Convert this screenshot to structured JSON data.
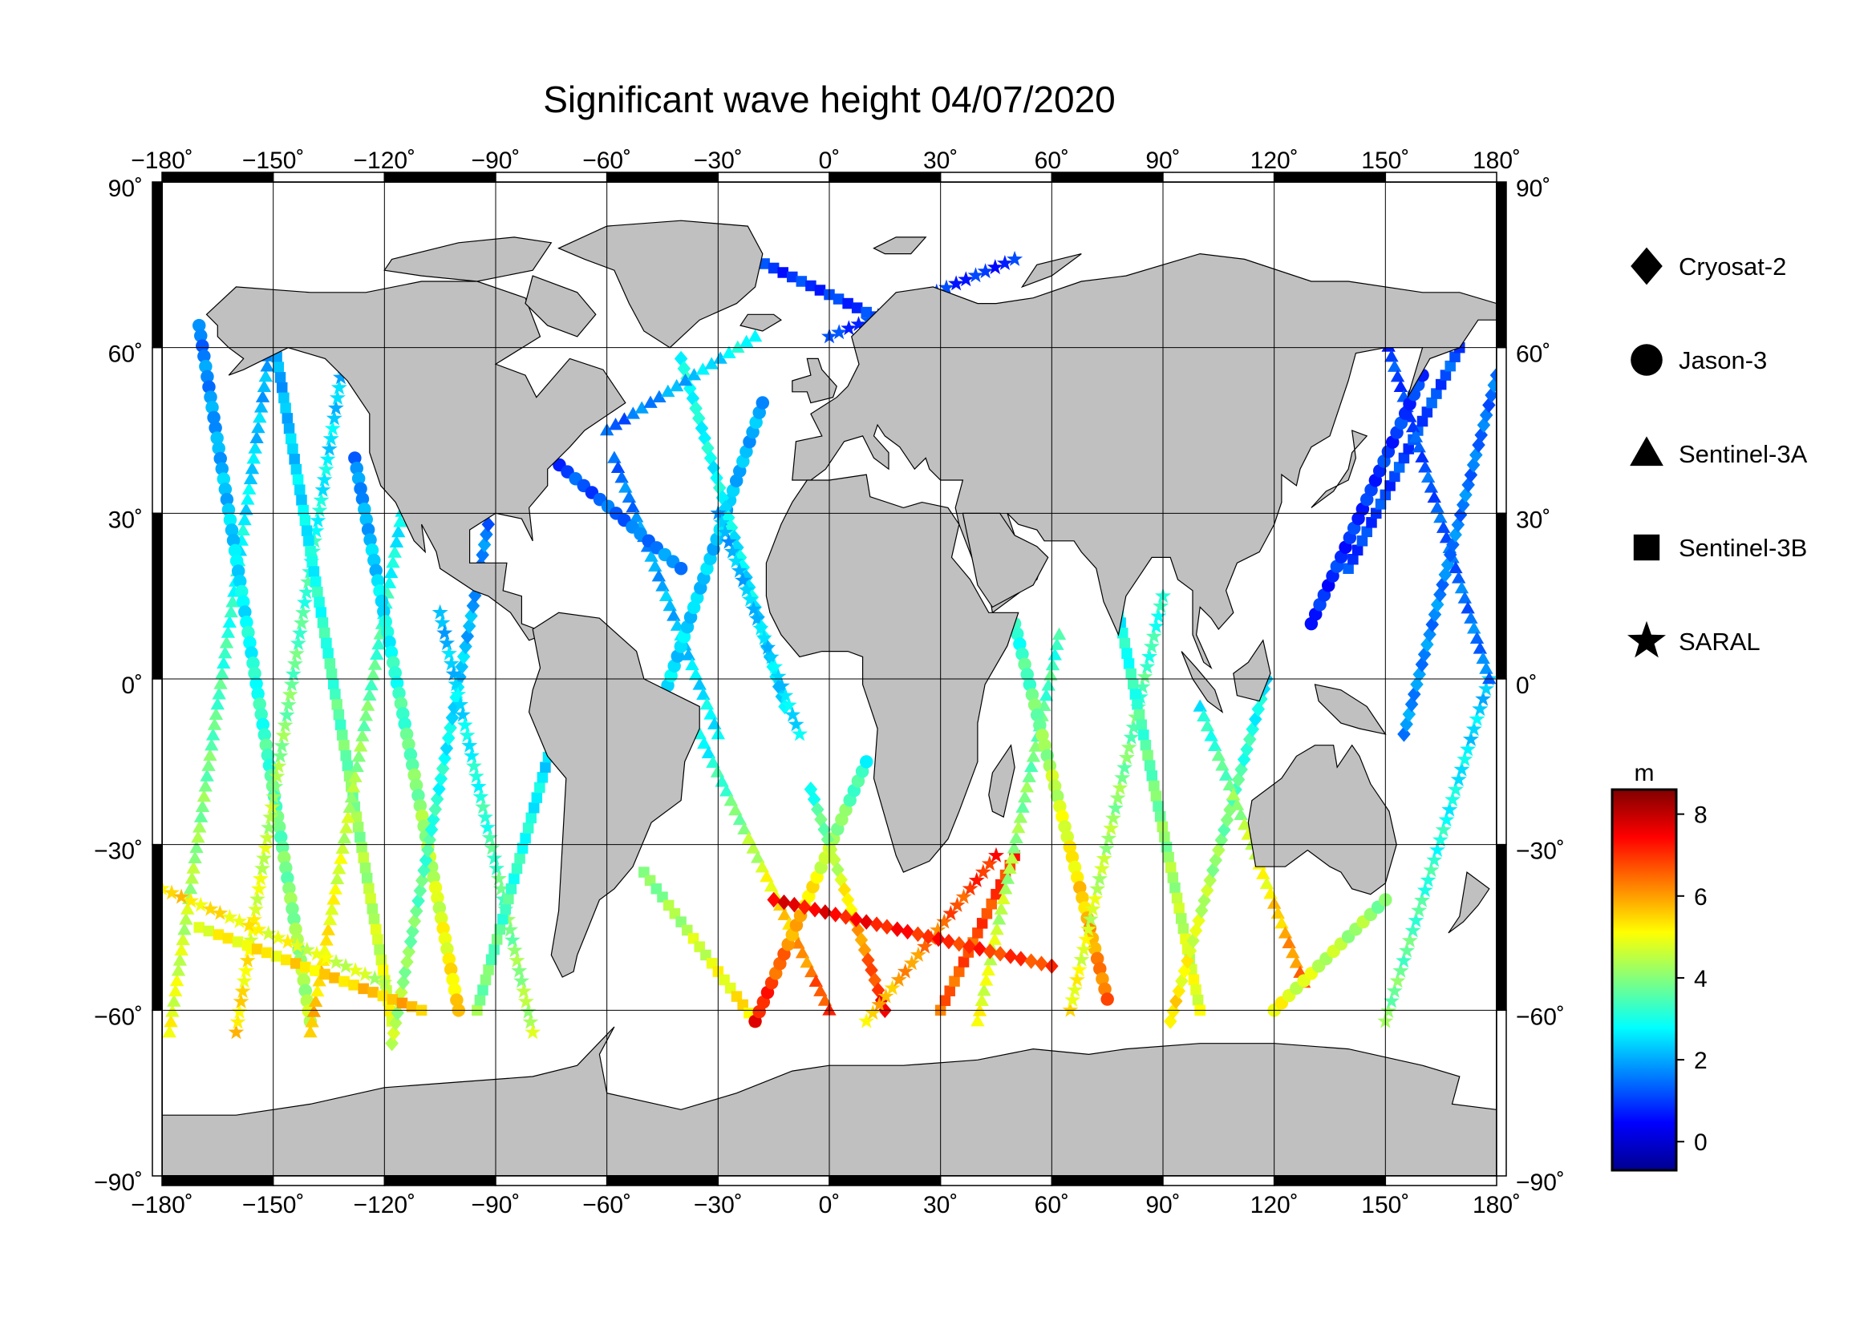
{
  "title": "Significant wave height 04/07/2020",
  "axes": {
    "lon_ticks": [
      "−180˚",
      "−150˚",
      "−120˚",
      "−90˚",
      "−60˚",
      "−30˚",
      "0˚",
      "30˚",
      "60˚",
      "90˚",
      "120˚",
      "150˚",
      "180˚"
    ],
    "lat_ticks": [
      "90˚",
      "60˚",
      "30˚",
      "0˚",
      "−30˚",
      "−60˚",
      "−90˚"
    ],
    "lon_range": [
      -180,
      180
    ],
    "lat_range": [
      -90,
      90
    ],
    "lon_values": [
      -180,
      -150,
      -120,
      -90,
      -60,
      -30,
      0,
      30,
      60,
      90,
      120,
      150,
      180
    ],
    "lat_values": [
      90,
      60,
      30,
      0,
      -30,
      -60,
      -90
    ],
    "grid": true
  },
  "legend": {
    "position": "right",
    "items": [
      {
        "label": "Cryosat-2",
        "symbol": "diamond"
      },
      {
        "label": "Jason-3",
        "symbol": "circle"
      },
      {
        "label": "Sentinel-3A",
        "symbol": "triangle"
      },
      {
        "label": "Sentinel-3B",
        "symbol": "square"
      },
      {
        "label": "SARAL",
        "symbol": "star"
      }
    ]
  },
  "colorbar": {
    "unit": "m",
    "ticks": [
      "8",
      "6",
      "4",
      "2",
      "0"
    ],
    "tick_values": [
      8,
      6,
      4,
      2,
      0
    ],
    "range": [
      -0.7,
      8.6
    ],
    "colors": [
      "#00008f",
      "#0000ff",
      "#0080ff",
      "#00ffff",
      "#80ff80",
      "#ffff00",
      "#ff8000",
      "#ff0000",
      "#800000"
    ]
  },
  "colors": {
    "land": "#c0c0c0",
    "ocean": "#ffffff",
    "frame": "#000000"
  },
  "chart_data": {
    "type": "scatter",
    "title": "Significant wave height 04/07/2020",
    "xlabel": "",
    "ylabel": "",
    "xlim": [
      -180,
      180
    ],
    "ylim": [
      -90,
      90
    ],
    "value_unit": "m",
    "description_series": [
      {
        "name": "Cryosat-2",
        "symbol": "diamond"
      },
      {
        "name": "Jason-3",
        "symbol": "circle"
      },
      {
        "name": "Sentinel-3A",
        "symbol": "triangle"
      },
      {
        "name": "Sentinel-3B",
        "symbol": "square"
      },
      {
        "name": "SARAL",
        "symbol": "star"
      }
    ],
    "tracks": [
      {
        "sat": "Sentinel-3A",
        "lon": [
          -178,
          -150
        ],
        "lat": [
          -64,
          64
        ],
        "swh": [
          5.0,
          1.8
        ]
      },
      {
        "sat": "Jason-3",
        "lon": [
          -170,
          -140
        ],
        "lat": [
          64,
          -62
        ],
        "swh": [
          1.5,
          4.5
        ]
      },
      {
        "sat": "SARAL",
        "lon": [
          -160,
          -130
        ],
        "lat": [
          -64,
          62
        ],
        "swh": [
          5.5,
          2.0
        ]
      },
      {
        "sat": "Sentinel-3B",
        "lon": [
          -150,
          -118
        ],
        "lat": [
          62,
          -62
        ],
        "swh": [
          1.8,
          5.0
        ]
      },
      {
        "sat": "Sentinel-3A",
        "lon": [
          -140,
          -108
        ],
        "lat": [
          -64,
          58
        ],
        "swh": [
          5.8,
          1.6
        ]
      },
      {
        "sat": "Jason-3",
        "lon": [
          -128,
          -100
        ],
        "lat": [
          40,
          -60
        ],
        "swh": [
          1.6,
          5.5
        ]
      },
      {
        "sat": "Cryosat-2",
        "lon": [
          -118,
          -92
        ],
        "lat": [
          -66,
          28
        ],
        "swh": [
          4.5,
          1.5
        ]
      },
      {
        "sat": "SARAL",
        "lon": [
          -105,
          -80
        ],
        "lat": [
          12,
          -64
        ],
        "swh": [
          2.0,
          4.5
        ]
      },
      {
        "sat": "Sentinel-3B",
        "lon": [
          -95,
          -72
        ],
        "lat": [
          -60,
          -5
        ],
        "swh": [
          4.0,
          2.2
        ]
      },
      {
        "sat": "Sentinel-3A",
        "lon": [
          -58,
          -30
        ],
        "lat": [
          40,
          -10
        ],
        "swh": [
          1.4,
          2.8
        ]
      },
      {
        "sat": "Jason-3",
        "lon": [
          -48,
          -18
        ],
        "lat": [
          -10,
          50
        ],
        "swh": [
          2.6,
          2.0
        ]
      },
      {
        "sat": "Cryosat-2",
        "lon": [
          -40,
          -12
        ],
        "lat": [
          58,
          -5
        ],
        "swh": [
          3.0,
          2.4
        ]
      },
      {
        "sat": "SARAL",
        "lon": [
          -30,
          -8
        ],
        "lat": [
          30,
          -10
        ],
        "swh": [
          2.0,
          2.6
        ]
      },
      {
        "sat": "Sentinel-3B",
        "lon": [
          -50,
          -20
        ],
        "lat": [
          -35,
          -62
        ],
        "swh": [
          3.8,
          5.5
        ]
      },
      {
        "sat": "Sentinel-3A",
        "lon": [
          -35,
          0
        ],
        "lat": [
          -10,
          -60
        ],
        "swh": [
          2.6,
          7.0
        ]
      },
      {
        "sat": "Jason-3",
        "lon": [
          -20,
          10
        ],
        "lat": [
          -62,
          -15
        ],
        "swh": [
          7.5,
          3.0
        ]
      },
      {
        "sat": "Cryosat-2",
        "lon": [
          -5,
          15
        ],
        "lat": [
          -20,
          -60
        ],
        "swh": [
          3.0,
          7.5
        ]
      },
      {
        "sat": "SARAL",
        "lon": [
          10,
          45
        ],
        "lat": [
          -62,
          -32
        ],
        "swh": [
          5.5,
          7.2
        ]
      },
      {
        "sat": "Sentinel-3B",
        "lon": [
          30,
          50
        ],
        "lat": [
          -60,
          -32
        ],
        "swh": [
          6.5,
          7.0
        ]
      },
      {
        "sat": "Sentinel-3A",
        "lon": [
          40,
          62
        ],
        "lat": [
          -62,
          8
        ],
        "swh": [
          5.0,
          3.2
        ]
      },
      {
        "sat": "Jason-3",
        "lon": [
          50,
          75
        ],
        "lat": [
          10,
          -58
        ],
        "swh": [
          3.0,
          6.5
        ]
      },
      {
        "sat": "SARAL",
        "lon": [
          65,
          90
        ],
        "lat": [
          -60,
          15
        ],
        "swh": [
          5.2,
          3.0
        ]
      },
      {
        "sat": "Sentinel-3B",
        "lon": [
          78,
          100
        ],
        "lat": [
          12,
          -60
        ],
        "swh": [
          2.8,
          5.0
        ]
      },
      {
        "sat": "Cryosat-2",
        "lon": [
          92,
          118
        ],
        "lat": [
          -62,
          0
        ],
        "swh": [
          5.5,
          2.6
        ]
      },
      {
        "sat": "Sentinel-3A",
        "lon": [
          100,
          128
        ],
        "lat": [
          -5,
          -55
        ],
        "swh": [
          2.8,
          6.5
        ]
      },
      {
        "sat": "Jason-3",
        "lon": [
          120,
          150
        ],
        "lat": [
          -60,
          -40
        ],
        "swh": [
          5.0,
          4.0
        ]
      },
      {
        "sat": "SARAL",
        "lon": [
          150,
          178
        ],
        "lat": [
          -62,
          0
        ],
        "swh": [
          4.0,
          2.2
        ]
      },
      {
        "sat": "Sentinel-3B",
        "lon": [
          140,
          170
        ],
        "lat": [
          20,
          60
        ],
        "swh": [
          1.0,
          1.2
        ]
      },
      {
        "sat": "Sentinel-3A",
        "lon": [
          150,
          178
        ],
        "lat": [
          62,
          0
        ],
        "swh": [
          1.0,
          1.6
        ]
      },
      {
        "sat": "Jason-3",
        "lon": [
          130,
          160
        ],
        "lat": [
          10,
          55
        ],
        "swh": [
          0.8,
          1.0
        ]
      },
      {
        "sat": "Cryosat-2",
        "lon": [
          155,
          180
        ],
        "lat": [
          -10,
          55
        ],
        "swh": [
          1.8,
          1.4
        ]
      },
      {
        "sat": "Sentinel-3B",
        "lon": [
          -20,
          30
        ],
        "lat": [
          76,
          60
        ],
        "swh": [
          0.9,
          1.0
        ]
      },
      {
        "sat": "SARAL",
        "lon": [
          0,
          50
        ],
        "lat": [
          62,
          76
        ],
        "swh": [
          1.0,
          0.8
        ]
      },
      {
        "sat": "Sentinel-3A",
        "lon": [
          -60,
          -20
        ],
        "lat": [
          45,
          62
        ],
        "swh": [
          1.2,
          3.0
        ]
      },
      {
        "sat": "Jason-3",
        "lon": [
          -75,
          -40
        ],
        "lat": [
          40,
          20
        ],
        "swh": [
          1.0,
          1.8
        ]
      },
      {
        "sat": "Sentinel-3B",
        "lon": [
          -170,
          -110
        ],
        "lat": [
          -45,
          -60
        ],
        "swh": [
          5.0,
          5.8
        ]
      },
      {
        "sat": "SARAL",
        "lon": [
          -180,
          -120
        ],
        "lat": [
          -38,
          -55
        ],
        "swh": [
          5.5,
          4.5
        ]
      },
      {
        "sat": "Cryosat-2",
        "lon": [
          -15,
          60
        ],
        "lat": [
          -40,
          -52
        ],
        "swh": [
          7.6,
          6.8
        ]
      }
    ]
  }
}
